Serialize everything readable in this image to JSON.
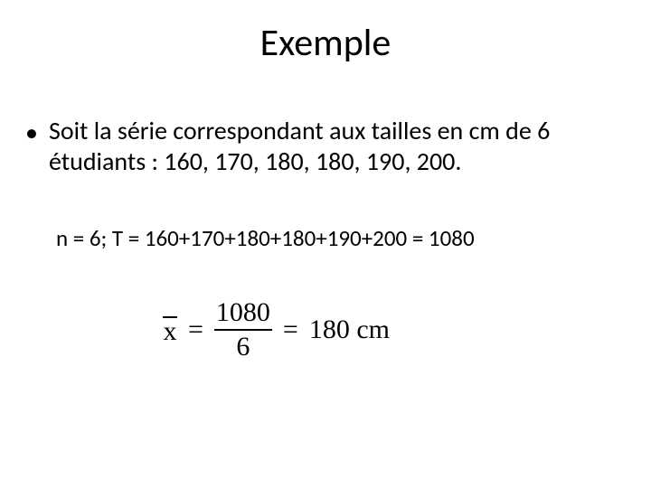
{
  "title": "Exemple",
  "bullet": {
    "marker": "•",
    "text": "Soit la série correspondant aux tailles en cm de 6 étudiants : 160, 170, 180, 180, 190, 200."
  },
  "calc": "n = 6; T = 160+170+180+180+190+200 = 1080",
  "formula": {
    "var": "x",
    "eq1": "=",
    "numerator": "1080",
    "denominator": "6",
    "eq2": "=",
    "result": "180 cm"
  },
  "style": {
    "background_color": "#ffffff",
    "text_color": "#000000",
    "title_fontsize": 42,
    "body_fontsize": 28,
    "calc_fontsize": 25,
    "formula_fontsize": 30,
    "formula_font": "Times New Roman",
    "body_font": "Calibri"
  }
}
